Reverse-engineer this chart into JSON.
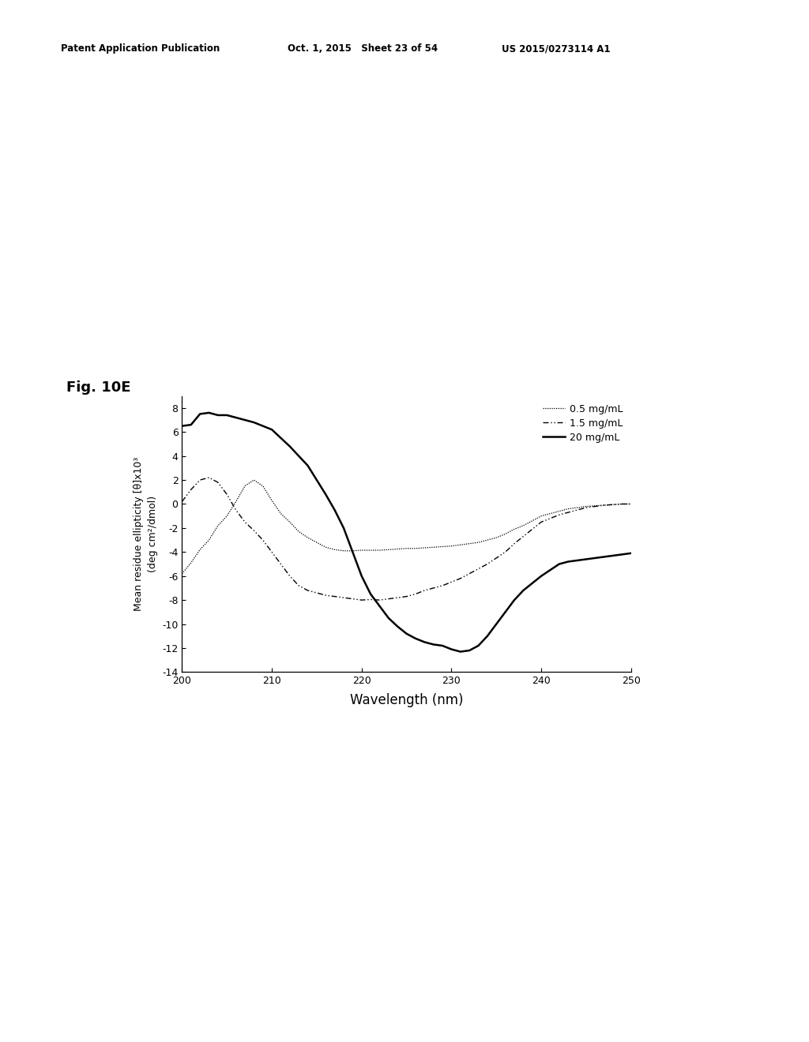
{
  "title": "Fig. 10E",
  "xlabel": "Wavelength (nm)",
  "ylabel_line1": "Mean residue ellipticity [θ]x10³",
  "ylabel_line2": "(deg cm²/dmol)",
  "xlim": [
    200,
    250
  ],
  "ylim": [
    -14,
    9
  ],
  "xticks": [
    200,
    210,
    220,
    230,
    240,
    250
  ],
  "yticks": [
    -14,
    -12,
    -10,
    -8,
    -6,
    -4,
    -2,
    0,
    2,
    4,
    6,
    8
  ],
  "header_left": "Patent Application Publication",
  "header_mid": "Oct. 1, 2015   Sheet 23 of 54",
  "header_right": "US 2015/0273114 A1",
  "legend": [
    "0.5 mg/mL",
    "1.5 mg/mL",
    "20 mg/mL"
  ],
  "line_05": {
    "x": [
      200,
      201,
      202,
      203,
      204,
      205,
      206,
      207,
      208,
      209,
      210,
      211,
      212,
      213,
      214,
      215,
      216,
      217,
      218,
      219,
      220,
      221,
      222,
      223,
      224,
      225,
      226,
      227,
      228,
      229,
      230,
      231,
      232,
      233,
      234,
      235,
      236,
      237,
      238,
      239,
      240,
      241,
      242,
      243,
      244,
      245,
      246,
      247,
      248,
      249,
      250
    ],
    "y": [
      -5.8,
      -4.9,
      -3.8,
      -3.0,
      -1.8,
      -1.0,
      0.2,
      1.5,
      2.0,
      1.5,
      0.3,
      -0.8,
      -1.5,
      -2.3,
      -2.8,
      -3.2,
      -3.6,
      -3.8,
      -3.9,
      -3.9,
      -3.85,
      -3.85,
      -3.85,
      -3.8,
      -3.75,
      -3.7,
      -3.7,
      -3.65,
      -3.6,
      -3.55,
      -3.5,
      -3.4,
      -3.3,
      -3.2,
      -3.0,
      -2.8,
      -2.5,
      -2.1,
      -1.8,
      -1.4,
      -1.0,
      -0.8,
      -0.6,
      -0.4,
      -0.3,
      -0.2,
      -0.15,
      -0.1,
      -0.05,
      0.0,
      0.0
    ]
  },
  "line_15": {
    "x": [
      200,
      201,
      202,
      203,
      204,
      205,
      206,
      207,
      208,
      209,
      210,
      211,
      212,
      213,
      214,
      215,
      216,
      217,
      218,
      219,
      220,
      221,
      222,
      223,
      224,
      225,
      226,
      227,
      228,
      229,
      230,
      231,
      232,
      233,
      234,
      235,
      236,
      237,
      238,
      239,
      240,
      241,
      242,
      243,
      244,
      245,
      246,
      247,
      248,
      249,
      250
    ],
    "y": [
      0.2,
      1.2,
      2.0,
      2.2,
      1.8,
      0.8,
      -0.5,
      -1.5,
      -2.2,
      -3.0,
      -4.0,
      -5.0,
      -6.0,
      -6.8,
      -7.2,
      -7.4,
      -7.6,
      -7.7,
      -7.8,
      -7.9,
      -8.0,
      -7.95,
      -8.0,
      -7.9,
      -7.8,
      -7.7,
      -7.5,
      -7.2,
      -7.0,
      -6.8,
      -6.5,
      -6.2,
      -5.8,
      -5.4,
      -5.0,
      -4.5,
      -4.0,
      -3.3,
      -2.7,
      -2.1,
      -1.5,
      -1.2,
      -0.9,
      -0.7,
      -0.5,
      -0.3,
      -0.2,
      -0.1,
      -0.05,
      0.0,
      0.0
    ]
  },
  "line_20": {
    "x": [
      200,
      201,
      202,
      203,
      204,
      205,
      206,
      207,
      208,
      209,
      210,
      211,
      212,
      213,
      214,
      215,
      216,
      217,
      218,
      219,
      220,
      221,
      222,
      223,
      224,
      225,
      226,
      227,
      228,
      229,
      230,
      231,
      232,
      233,
      234,
      235,
      236,
      237,
      238,
      239,
      240,
      241,
      242,
      243,
      244,
      245,
      246,
      247,
      248,
      249,
      250
    ],
    "y": [
      6.5,
      6.6,
      7.5,
      7.6,
      7.4,
      7.4,
      7.2,
      7.0,
      6.8,
      6.5,
      6.2,
      5.5,
      4.8,
      4.0,
      3.2,
      2.0,
      0.8,
      -0.5,
      -2.0,
      -4.0,
      -6.0,
      -7.5,
      -8.5,
      -9.5,
      -10.2,
      -10.8,
      -11.2,
      -11.5,
      -11.7,
      -11.8,
      -12.1,
      -12.3,
      -12.2,
      -11.8,
      -11.0,
      -10.0,
      -9.0,
      -8.0,
      -7.2,
      -6.6,
      -6.0,
      -5.5,
      -5.0,
      -4.8,
      -4.7,
      -4.6,
      -4.5,
      -4.4,
      -4.3,
      -4.2,
      -4.1
    ]
  },
  "background_color": "#ffffff",
  "line_color": "#000000"
}
